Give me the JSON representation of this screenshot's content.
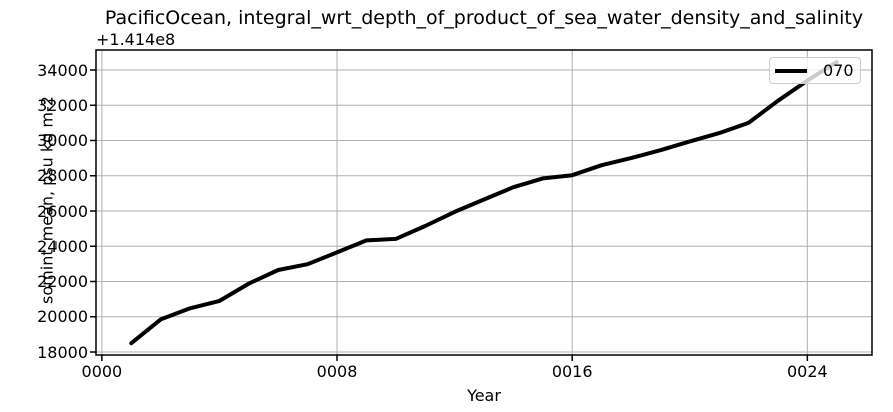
{
  "title": "PacificOcean, integral_wrt_depth_of_product_of_sea_water_density_and_salinity",
  "axes": {
    "xlabel": "Year",
    "ylabel": "somint_mean, psu kg m-2",
    "offset_text": "+1.414e8"
  },
  "legend": {
    "entries": [
      {
        "label": "070",
        "color": "#000000"
      }
    ]
  },
  "chart_data": {
    "type": "line",
    "title": "PacificOcean, integral_wrt_depth_of_product_of_sea_water_density_and_salinity",
    "xlabel": "Year",
    "ylabel": "somint_mean, psu kg m-2",
    "y_axis_offset_label": "+1.414e8",
    "y_axis_offset_value": 141400000,
    "note": "plotted y values are offsets above 1.414e8",
    "x": [
      1,
      2,
      3,
      4,
      5,
      6,
      7,
      8,
      9,
      10,
      11,
      12,
      13,
      14,
      15,
      16,
      17,
      18,
      19,
      20,
      21,
      22,
      23,
      24,
      25
    ],
    "series": [
      {
        "name": "070",
        "color": "#000000",
        "linewidth": 4,
        "values": [
          18500,
          19850,
          20480,
          20900,
          21880,
          22650,
          22980,
          23650,
          24330,
          24420,
          25150,
          25950,
          26650,
          27350,
          27850,
          28030,
          28600,
          29000,
          29450,
          29950,
          30420,
          31000,
          32250,
          33400,
          34450
        ]
      }
    ],
    "xticks": {
      "values": [
        0,
        8,
        16,
        24
      ],
      "labels": [
        "0000",
        "0008",
        "0016",
        "0024"
      ]
    },
    "yticks": {
      "values": [
        18000,
        20000,
        22000,
        24000,
        26000,
        28000,
        30000,
        32000,
        34000
      ],
      "labels": [
        "18000",
        "20000",
        "22000",
        "24000",
        "26000",
        "28000",
        "30000",
        "32000",
        "34000"
      ]
    },
    "xlim": [
      -0.2,
      26.2
    ],
    "ylim": [
      17830,
      35135
    ],
    "grid": true,
    "legend_position": "upper right",
    "colors": {
      "line": "#000000",
      "grid": "#b0b0b0",
      "spine": "#000000",
      "background": "#ffffff"
    }
  }
}
